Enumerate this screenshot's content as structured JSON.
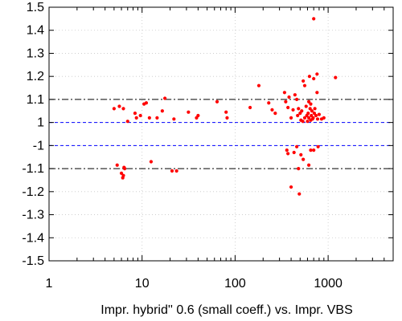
{
  "chart_data": {
    "type": "scatter",
    "title": "",
    "xlabel": "Impr. hybrid'' 0.6 (small coeff.) vs. Impr. VBS",
    "ylabel": "",
    "x_scale": "log",
    "x_range": [
      1,
      5000
    ],
    "x_ticks": [
      {
        "value": 1,
        "label": "1"
      },
      {
        "value": 10,
        "label": "10"
      },
      {
        "value": 100,
        "label": "100"
      },
      {
        "value": 1000,
        "label": "1000"
      }
    ],
    "y_axis_note": "Broken axis: upper panel spans 1 to 1.5, lower panel spans -1 to -1.5; the gap between 1 and -1 is removed.",
    "y_range_upper": [
      1,
      1.5
    ],
    "y_range_lower": [
      -1.5,
      -1
    ],
    "y_ticks": [
      {
        "value": 1.5,
        "label": "1.5"
      },
      {
        "value": 1.4,
        "label": "1.4"
      },
      {
        "value": 1.3,
        "label": "1.3"
      },
      {
        "value": 1.2,
        "label": "1.2"
      },
      {
        "value": 1.1,
        "label": "1.1"
      },
      {
        "value": 1,
        "label": "1"
      },
      {
        "value": -1,
        "label": "-1"
      },
      {
        "value": -1.1,
        "label": "-1.1"
      },
      {
        "value": -1.2,
        "label": "-1.2"
      },
      {
        "value": -1.3,
        "label": "-1.3"
      },
      {
        "value": -1.4,
        "label": "-1.4"
      },
      {
        "value": -1.5,
        "label": "-1.5"
      }
    ],
    "grid": true,
    "reference_lines": [
      {
        "y": 1.1,
        "style": "dash-dot",
        "color": "#000000"
      },
      {
        "y": -1.1,
        "style": "dash-dot",
        "color": "#000000"
      },
      {
        "y": 1,
        "style": "dashed",
        "color": "#0000ff"
      },
      {
        "y": -1,
        "style": "dashed",
        "color": "#0000ff"
      }
    ],
    "point_color": "#ff0000",
    "points": [
      {
        "x": 5.0,
        "y": 1.06
      },
      {
        "x": 5.7,
        "y": 1.07
      },
      {
        "x": 6.3,
        "y": 1.06
      },
      {
        "x": 7.0,
        "y": 1.005
      },
      {
        "x": 8.4,
        "y": 1.04
      },
      {
        "x": 8.7,
        "y": 1.02
      },
      {
        "x": 9.6,
        "y": 1.03
      },
      {
        "x": 10.5,
        "y": 1.08
      },
      {
        "x": 11.1,
        "y": 1.085
      },
      {
        "x": 12.0,
        "y": 1.02
      },
      {
        "x": 14.5,
        "y": 1.02
      },
      {
        "x": 16.5,
        "y": 1.05
      },
      {
        "x": 17.6,
        "y": 1.105
      },
      {
        "x": 22.0,
        "y": 1.015
      },
      {
        "x": 31.5,
        "y": 1.045
      },
      {
        "x": 38.5,
        "y": 1.02
      },
      {
        "x": 40.0,
        "y": 1.03
      },
      {
        "x": 64.0,
        "y": 1.09
      },
      {
        "x": 80.0,
        "y": 1.045
      },
      {
        "x": 82.0,
        "y": 1.02
      },
      {
        "x": 145,
        "y": 1.065
      },
      {
        "x": 180,
        "y": 1.16
      },
      {
        "x": 230,
        "y": 1.085
      },
      {
        "x": 250,
        "y": 1.055
      },
      {
        "x": 270,
        "y": 1.04
      },
      {
        "x": 340,
        "y": 1.13
      },
      {
        "x": 350,
        "y": 1.09
      },
      {
        "x": 370,
        "y": 1.065
      },
      {
        "x": 380,
        "y": 1.11
      },
      {
        "x": 400,
        "y": 1.02
      },
      {
        "x": 420,
        "y": 1.055
      },
      {
        "x": 440,
        "y": 1.12
      },
      {
        "x": 460,
        "y": 1.1
      },
      {
        "x": 470,
        "y": 1.03
      },
      {
        "x": 480,
        "y": 1.06
      },
      {
        "x": 500,
        "y": 1.04
      },
      {
        "x": 510,
        "y": 1.01
      },
      {
        "x": 520,
        "y": 1.05
      },
      {
        "x": 540,
        "y": 1.18
      },
      {
        "x": 560,
        "y": 1.02
      },
      {
        "x": 580,
        "y": 1.07
      },
      {
        "x": 590,
        "y": 1.03
      },
      {
        "x": 600,
        "y": 1.005
      },
      {
        "x": 610,
        "y": 1.04
      },
      {
        "x": 620,
        "y": 1.02
      },
      {
        "x": 630,
        "y": 1.2
      },
      {
        "x": 640,
        "y": 1.06
      },
      {
        "x": 650,
        "y": 1.01
      },
      {
        "x": 660,
        "y": 1.03
      },
      {
        "x": 670,
        "y": 1.05
      },
      {
        "x": 680,
        "y": 1.015
      },
      {
        "x": 690,
        "y": 1.02
      },
      {
        "x": 700,
        "y": 1.45
      },
      {
        "x": 700,
        "y": 1.19
      },
      {
        "x": 710,
        "y": 1.04
      },
      {
        "x": 720,
        "y": 1.06
      },
      {
        "x": 740,
        "y": 1.03
      },
      {
        "x": 760,
        "y": 1.21
      },
      {
        "x": 770,
        "y": 1.015
      },
      {
        "x": 800,
        "y": 1.035
      },
      {
        "x": 850,
        "y": 1.015
      },
      {
        "x": 900,
        "y": 1.02
      },
      {
        "x": 1200,
        "y": 1.195
      },
      {
        "x": 560,
        "y": 1.16
      },
      {
        "x": 620,
        "y": 1.09
      },
      {
        "x": 650,
        "y": 1.08
      },
      {
        "x": 760,
        "y": 1.13
      },
      {
        "x": 535,
        "y": 1.005
      },
      {
        "x": 5.4,
        "y": -1.085
      },
      {
        "x": 6.0,
        "y": -1.12
      },
      {
        "x": 6.2,
        "y": -1.14
      },
      {
        "x": 6.3,
        "y": -1.13
      },
      {
        "x": 6.4,
        "y": -1.095
      },
      {
        "x": 6.5,
        "y": -1.1
      },
      {
        "x": 12.5,
        "y": -1.07
      },
      {
        "x": 21.0,
        "y": -1.11
      },
      {
        "x": 23.5,
        "y": -1.11
      },
      {
        "x": 360,
        "y": -1.02
      },
      {
        "x": 370,
        "y": -1.035
      },
      {
        "x": 400,
        "y": -1.18
      },
      {
        "x": 430,
        "y": -1.03
      },
      {
        "x": 460,
        "y": -1.005
      },
      {
        "x": 480,
        "y": -1.1
      },
      {
        "x": 490,
        "y": -1.21
      },
      {
        "x": 510,
        "y": -1.04
      },
      {
        "x": 540,
        "y": -1.06
      },
      {
        "x": 620,
        "y": -1.085
      },
      {
        "x": 650,
        "y": -1.02
      },
      {
        "x": 700,
        "y": -1.02
      },
      {
        "x": 780,
        "y": -1.005
      }
    ]
  }
}
